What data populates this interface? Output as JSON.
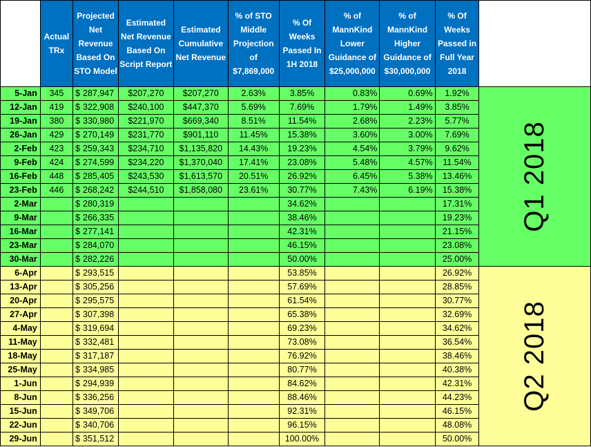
{
  "colors": {
    "header_blue": "#0070c0",
    "q1_green": "#66ff66",
    "q2_yellow": "#ffff99"
  },
  "headers": [
    "",
    "Actual TRx",
    "Projected Net Revenue Based On STO Model",
    "Estimated Net Revenue Based On Script Report",
    "Estimated Cumulative Net Revenue",
    "% of STO Middle Projection of $7,869,000",
    "% Of Weeks Passed In 1H 2018",
    "% of MannKind Lower Guidance of $25,000,000",
    "% of MannKind Higher Guidance of $30,000,000",
    "% Of Weeks Passed in Full Year 2018"
  ],
  "quarters": [
    "Q1 2018",
    "Q2 2018"
  ],
  "rows": [
    {
      "week": "5-Jan",
      "trx": "345",
      "dollar": "$",
      "proj": "287,947",
      "est": "$207,270",
      "cum": "$207,270",
      "sto": "2.63%",
      "weeks_1h": "3.85%",
      "lower": "0.83%",
      "higher": "0.69%",
      "weeks_fy": "1.92%"
    },
    {
      "week": "12-Jan",
      "trx": "419",
      "dollar": "$",
      "proj": "322,908",
      "est": "$240,100",
      "cum": "$447,370",
      "sto": "5.69%",
      "weeks_1h": "7.69%",
      "lower": "1.79%",
      "higher": "1.49%",
      "weeks_fy": "3.85%"
    },
    {
      "week": "19-Jan",
      "trx": "380",
      "dollar": "$",
      "proj": "330,980",
      "est": "$221,970",
      "cum": "$669,340",
      "sto": "8.51%",
      "weeks_1h": "11.54%",
      "lower": "2.68%",
      "higher": "2.23%",
      "weeks_fy": "5.77%"
    },
    {
      "week": "26-Jan",
      "trx": "429",
      "dollar": "$",
      "proj": "270,149",
      "est": "$231,770",
      "cum": "$901,110",
      "sto": "11.45%",
      "weeks_1h": "15.38%",
      "lower": "3.60%",
      "higher": "3.00%",
      "weeks_fy": "7.69%"
    },
    {
      "week": "2-Feb",
      "trx": "423",
      "dollar": "$",
      "proj": "259,343",
      "est": "$234,710",
      "cum": "$1,135,820",
      "sto": "14.43%",
      "weeks_1h": "19.23%",
      "lower": "4.54%",
      "higher": "3.79%",
      "weeks_fy": "9.62%"
    },
    {
      "week": "9-Feb",
      "trx": "424",
      "dollar": "$",
      "proj": "274,599",
      "est": "$234,220",
      "cum": "$1,370,040",
      "sto": "17.41%",
      "weeks_1h": "23.08%",
      "lower": "5.48%",
      "higher": "4.57%",
      "weeks_fy": "11.54%"
    },
    {
      "week": "16-Feb",
      "trx": "448",
      "dollar": "$",
      "proj": "285,405",
      "est": "$243,530",
      "cum": "$1,613,570",
      "sto": "20.51%",
      "weeks_1h": "26.92%",
      "lower": "6.45%",
      "higher": "5.38%",
      "weeks_fy": "13.46%"
    },
    {
      "week": "23-Feb",
      "trx": "446",
      "dollar": "$",
      "proj": "268,242",
      "est": "$244,510",
      "cum": "$1,858,080",
      "sto": "23.61%",
      "weeks_1h": "30.77%",
      "lower": "7.43%",
      "higher": "6.19%",
      "weeks_fy": "15.38%"
    },
    {
      "week": "2-Mar",
      "trx": "",
      "dollar": "$",
      "proj": "280,319",
      "est": "",
      "cum": "",
      "sto": "",
      "weeks_1h": "34.62%",
      "lower": "",
      "higher": "",
      "weeks_fy": "17.31%"
    },
    {
      "week": "9-Mar",
      "trx": "",
      "dollar": "$",
      "proj": "266,335",
      "est": "",
      "cum": "",
      "sto": "",
      "weeks_1h": "38.46%",
      "lower": "",
      "higher": "",
      "weeks_fy": "19.23%"
    },
    {
      "week": "16-Mar",
      "trx": "",
      "dollar": "$",
      "proj": "277,141",
      "est": "",
      "cum": "",
      "sto": "",
      "weeks_1h": "42.31%",
      "lower": "",
      "higher": "",
      "weeks_fy": "21.15%"
    },
    {
      "week": "23-Mar",
      "trx": "",
      "dollar": "$",
      "proj": "284,070",
      "est": "",
      "cum": "",
      "sto": "",
      "weeks_1h": "46.15%",
      "lower": "",
      "higher": "",
      "weeks_fy": "23.08%"
    },
    {
      "week": "30-Mar",
      "trx": "",
      "dollar": "$",
      "proj": "282,226",
      "est": "",
      "cum": "",
      "sto": "",
      "weeks_1h": "50.00%",
      "lower": "",
      "higher": "",
      "weeks_fy": "25.00%"
    },
    {
      "week": "6-Apr",
      "trx": "",
      "dollar": "$",
      "proj": "293,515",
      "est": "",
      "cum": "",
      "sto": "",
      "weeks_1h": "53.85%",
      "lower": "",
      "higher": "",
      "weeks_fy": "26.92%"
    },
    {
      "week": "13-Apr",
      "trx": "",
      "dollar": "$",
      "proj": "305,256",
      "est": "",
      "cum": "",
      "sto": "",
      "weeks_1h": "57.69%",
      "lower": "",
      "higher": "",
      "weeks_fy": "28.85%"
    },
    {
      "week": "20-Apr",
      "trx": "",
      "dollar": "$",
      "proj": "295,575",
      "est": "",
      "cum": "",
      "sto": "",
      "weeks_1h": "61.54%",
      "lower": "",
      "higher": "",
      "weeks_fy": "30.77%"
    },
    {
      "week": "27-Apr",
      "trx": "",
      "dollar": "$",
      "proj": "307,398",
      "est": "",
      "cum": "",
      "sto": "",
      "weeks_1h": "65.38%",
      "lower": "",
      "higher": "",
      "weeks_fy": "32.69%"
    },
    {
      "week": "4-May",
      "trx": "",
      "dollar": "$",
      "proj": "319,694",
      "est": "",
      "cum": "",
      "sto": "",
      "weeks_1h": "69.23%",
      "lower": "",
      "higher": "",
      "weeks_fy": "34.62%"
    },
    {
      "week": "11-May",
      "trx": "",
      "dollar": "$",
      "proj": "332,481",
      "est": "",
      "cum": "",
      "sto": "",
      "weeks_1h": "73.08%",
      "lower": "",
      "higher": "",
      "weeks_fy": "36.54%"
    },
    {
      "week": "18-May",
      "trx": "",
      "dollar": "$",
      "proj": "317,187",
      "est": "",
      "cum": "",
      "sto": "",
      "weeks_1h": "76.92%",
      "lower": "",
      "higher": "",
      "weeks_fy": "38.46%"
    },
    {
      "week": "25-May",
      "trx": "",
      "dollar": "$",
      "proj": "334,985",
      "est": "",
      "cum": "",
      "sto": "",
      "weeks_1h": "80.77%",
      "lower": "",
      "higher": "",
      "weeks_fy": "40.38%"
    },
    {
      "week": "1-Jun",
      "trx": "",
      "dollar": "$",
      "proj": "294,939",
      "est": "",
      "cum": "",
      "sto": "",
      "weeks_1h": "84.62%",
      "lower": "",
      "higher": "",
      "weeks_fy": "42.31%"
    },
    {
      "week": "8-Jun",
      "trx": "",
      "dollar": "$",
      "proj": "336,256",
      "est": "",
      "cum": "",
      "sto": "",
      "weeks_1h": "88.46%",
      "lower": "",
      "higher": "",
      "weeks_fy": "44.23%"
    },
    {
      "week": "15-Jun",
      "trx": "",
      "dollar": "$",
      "proj": "349,706",
      "est": "",
      "cum": "",
      "sto": "",
      "weeks_1h": "92.31%",
      "lower": "",
      "higher": "",
      "weeks_fy": "46.15%"
    },
    {
      "week": "22-Jun",
      "trx": "",
      "dollar": "$",
      "proj": "340,706",
      "est": "",
      "cum": "",
      "sto": "",
      "weeks_1h": "96.15%",
      "lower": "",
      "higher": "",
      "weeks_fy": "48.08%"
    },
    {
      "week": "29-Jun",
      "trx": "",
      "dollar": "$",
      "proj": "351,512",
      "est": "",
      "cum": "",
      "sto": "",
      "weeks_1h": "100.00%",
      "lower": "",
      "higher": "",
      "weeks_fy": "50.00%"
    }
  ]
}
